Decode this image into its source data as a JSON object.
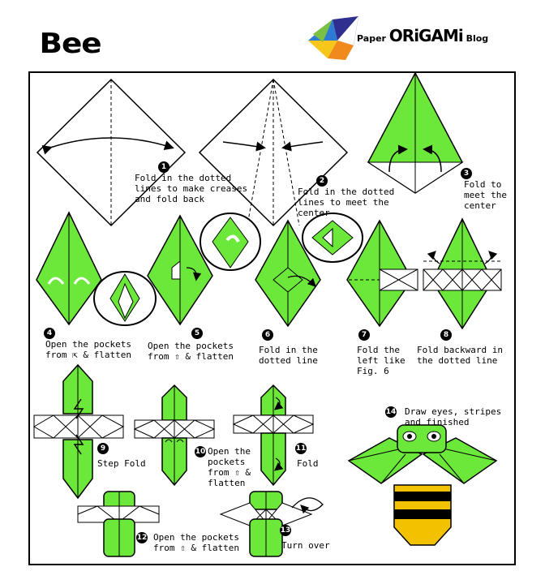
{
  "title": "Bee",
  "brand": {
    "paper": "Paper",
    "origami": "ORiGAMi",
    "blog": "Blog"
  },
  "colors": {
    "paper_green": "#6ce83a",
    "outline": "#000000",
    "white_paper": "#ffffff"
  },
  "steps": [
    {
      "n": "1",
      "text": "Fold in the dotted\nlines to make creases\nand fold back"
    },
    {
      "n": "2",
      "text": "Fold in the dotted\nlines to meet the\ncenter"
    },
    {
      "n": "3",
      "text": "Fold to\nmeet the\ncenter"
    },
    {
      "n": "4",
      "text": "Open the pockets\nfrom ⇱ & flatten"
    },
    {
      "n": "5",
      "text": "Open the pockets\nfrom ⇧ & flatten"
    },
    {
      "n": "6",
      "text": "Fold in the\ndotted line"
    },
    {
      "n": "7",
      "text": "Fold the\nleft like\nFig. 6"
    },
    {
      "n": "8",
      "text": "Fold backward in\nthe dotted line"
    },
    {
      "n": "9",
      "text": "Step Fold"
    },
    {
      "n": "10",
      "text": "Open the\npockets\nfrom ⇧ &\nflatten"
    },
    {
      "n": "11",
      "text": "Fold"
    },
    {
      "n": "12",
      "text": "Open the pockets\nfrom ⇧ & flatten"
    },
    {
      "n": "13",
      "text": "Turn over"
    },
    {
      "n": "14",
      "text": "Draw eyes, stripes\nand finished"
    }
  ]
}
